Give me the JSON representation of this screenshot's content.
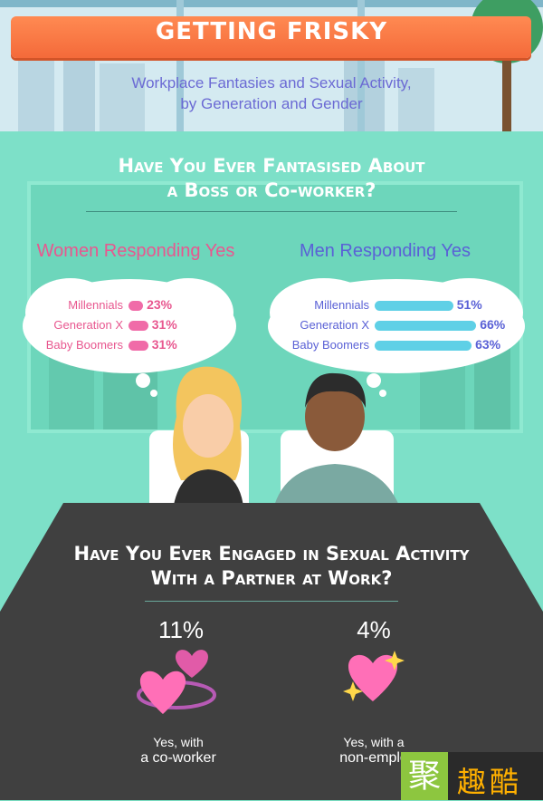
{
  "header": {
    "title": "GETTING FRISKY",
    "subtitle_line1": "Workplace Fantasies and Sexual Activity,",
    "subtitle_line2": "by Generation and Gender"
  },
  "question1": {
    "line1": "Have You Ever Fantasised About",
    "line2": "a Boss or Co-worker?"
  },
  "question2": {
    "line1": "Have You Ever Engaged in Sexual Activity",
    "line2": "With a Partner at Work?"
  },
  "stats": [
    {
      "value": "11%",
      "caption_line1": "Yes, with",
      "caption_line2": "a co-worker"
    },
    {
      "value": "4%",
      "caption_line1": "Yes, with a",
      "caption_line2": "non-emplo"
    }
  ],
  "logo": {
    "left": "聚",
    "right": "趣酷"
  },
  "colors": {
    "women": "#e8578f",
    "men": "#5a61d6",
    "women_bar": "#f06ba8",
    "men_bar": "#5fd0e6"
  },
  "chart_data": [
    {
      "type": "bar",
      "title": "Women Responding Yes",
      "categories": [
        "Millennials",
        "Generation X",
        "Baby Boomers"
      ],
      "values": [
        23,
        31,
        31
      ],
      "labels": [
        "23%",
        "31%",
        "31%"
      ],
      "ylim": [
        0,
        100
      ]
    },
    {
      "type": "bar",
      "title": "Men Responding Yes",
      "categories": [
        "Millennials",
        "Generation X",
        "Baby Boomers"
      ],
      "values": [
        51,
        66,
        63
      ],
      "labels": [
        "51%",
        "66%",
        "63%"
      ],
      "ylim": [
        0,
        100
      ]
    }
  ]
}
